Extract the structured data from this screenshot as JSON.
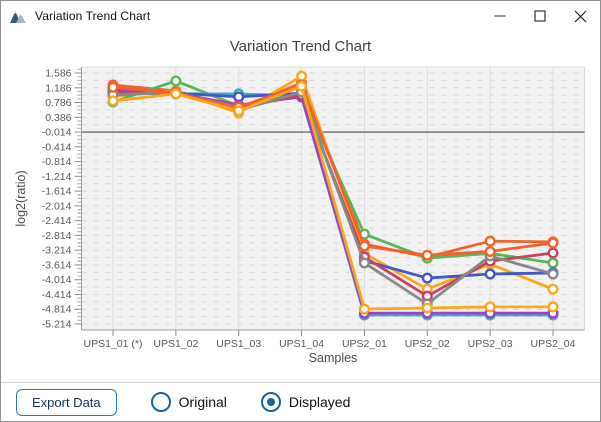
{
  "window": {
    "title": "Variation Trend Chart",
    "controls": {
      "minimize": "minimize",
      "maximize": "maximize",
      "close": "close"
    }
  },
  "chart_data": {
    "type": "line",
    "title": "Variation Trend Chart",
    "xlabel": "Samples",
    "ylabel": "log2(ratio)",
    "categories": [
      "UPS1_01 (*)",
      "UPS1_02",
      "UPS1_03",
      "UPS1_04",
      "UPS2_01",
      "UPS2_02",
      "UPS2_03",
      "UPS2_04"
    ],
    "y_ticks": [
      "1.586",
      "1.186",
      "0.786",
      "0.386",
      "-0.014",
      "-0.414",
      "-0.814",
      "-1.214",
      "-1.614",
      "-2.014",
      "-2.414",
      "-2.814",
      "-3.214",
      "-3.614",
      "-4.014",
      "-4.414",
      "-4.814",
      "-5.214"
    ],
    "ylim": [
      -5.38,
      1.75
    ],
    "grid": true,
    "legend": "none",
    "reference_line": -0.014,
    "series": [
      {
        "name": "series-1",
        "color": "#f3622d",
        "values": [
          1.26,
          1.1,
          0.61,
          1.32,
          -3.05,
          -3.4,
          -2.97,
          -2.99
        ]
      },
      {
        "name": "series-2",
        "color": "#fba71b",
        "values": [
          0.96,
          1.1,
          0.5,
          1.5,
          -3.3,
          -4.27,
          -3.59,
          -4.27
        ]
      },
      {
        "name": "series-3",
        "color": "#57b757",
        "values": [
          0.8,
          1.37,
          0.69,
          1.02,
          -2.78,
          -3.43,
          -3.3,
          -3.56
        ]
      },
      {
        "name": "series-4",
        "color": "#41a9c9",
        "values": [
          1.04,
          1.02,
          1.02,
          0.96,
          -4.97,
          -4.97,
          -4.97,
          -4.97
        ]
      },
      {
        "name": "series-5",
        "color": "#4258c9",
        "values": [
          1.1,
          1.04,
          0.94,
          1.04,
          -3.5,
          -3.97,
          -3.86,
          -3.83
        ]
      },
      {
        "name": "series-6",
        "color": "#9a42c8",
        "values": [
          1.15,
          1.04,
          0.72,
          0.94,
          -4.92,
          -4.92,
          -4.92,
          -4.92
        ]
      },
      {
        "name": "series-7",
        "color": "#c84164",
        "values": [
          1.07,
          1.02,
          0.64,
          0.99,
          -3.4,
          -4.46,
          -3.51,
          -3.29
        ]
      },
      {
        "name": "series-8",
        "color": "#888888",
        "values": [
          0.99,
          1.07,
          0.58,
          1.07,
          -3.56,
          -4.67,
          -3.37,
          -3.86
        ]
      },
      {
        "name": "series-9",
        "color": "#f3622d",
        "values": [
          1.2,
          1.04,
          0.66,
          1.26,
          -3.1,
          -3.35,
          -3.25,
          -3.02
        ]
      },
      {
        "name": "series-10",
        "color": "#fba71b",
        "values": [
          0.83,
          1.02,
          0.56,
          1.23,
          -4.81,
          -4.78,
          -4.75,
          -4.75
        ]
      }
    ]
  },
  "footer": {
    "export_label": "Export Data",
    "radios": [
      {
        "label": "Original",
        "selected": false
      },
      {
        "label": "Displayed",
        "selected": true
      }
    ]
  },
  "colors": {
    "accent_blue": "#1465a0",
    "button_border": "#2b7cb5",
    "reference_line": "#8f8f8f",
    "plot_background": "#f2f2f2",
    "gridline": "#d6d6d6"
  }
}
